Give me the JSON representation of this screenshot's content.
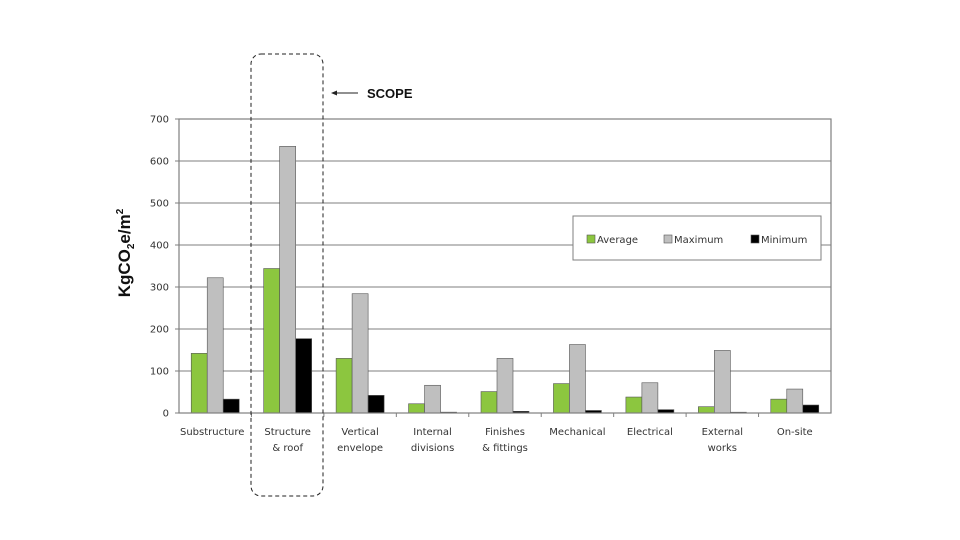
{
  "chart_data": {
    "type": "bar",
    "title": "",
    "xlabel": "",
    "ylabel": "KgCO2e/m2",
    "ylabel_parts": {
      "main": "KgCO",
      "sub": "2",
      "mid": "e/m",
      "sup": "2"
    },
    "ylim": [
      0,
      700
    ],
    "yticks": [
      0,
      100,
      200,
      300,
      400,
      500,
      600,
      700
    ],
    "grid": true,
    "legend_position": "upper right (inside plot)",
    "categories": [
      [
        "Substructure"
      ],
      [
        "Structure",
        "& roof"
      ],
      [
        "Vertical",
        "envelope"
      ],
      [
        "Internal",
        "divisions"
      ],
      [
        "Finishes",
        "& fittings"
      ],
      [
        "Mechanical"
      ],
      [
        "Electrical"
      ],
      [
        "External",
        "works"
      ],
      [
        "On-site"
      ]
    ],
    "series": [
      {
        "name": "Average",
        "color": "#8cc63f",
        "values": [
          142,
          344,
          130,
          22,
          51,
          70,
          38,
          15,
          33
        ]
      },
      {
        "name": "Maximum",
        "color": "#bfbfbf",
        "values": [
          322,
          635,
          284,
          66,
          130,
          163,
          72,
          149,
          57
        ]
      },
      {
        "name": "Minimum",
        "color": "#000000",
        "values": [
          33,
          177,
          42,
          2,
          4,
          6,
          8,
          0,
          19
        ]
      }
    ],
    "annotations": [
      {
        "type": "dashed-rounded-box",
        "target_category": "Structure & roof",
        "label": "SCOPE",
        "arrow": "left"
      }
    ]
  }
}
